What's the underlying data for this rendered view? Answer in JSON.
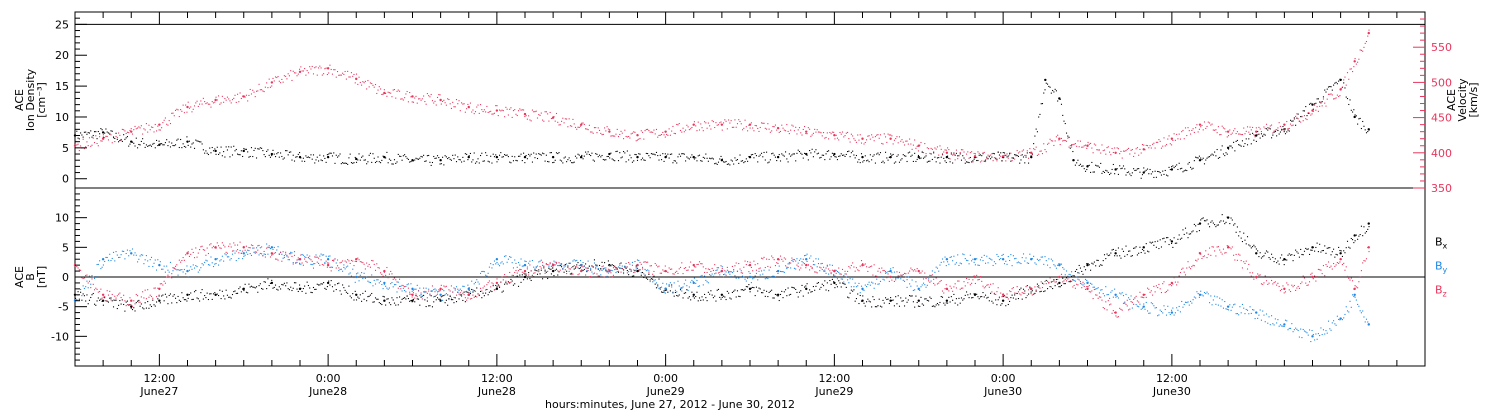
{
  "chart_data": [
    {
      "type": "scatter",
      "panel": "top",
      "ylabel_lines": [
        "ACE",
        "Ion Density",
        "[cm⁻³]"
      ],
      "ylabel_right_lines": [
        "ACE",
        "Velocity",
        "[km/s]"
      ],
      "ylim": [
        -1.5,
        27
      ],
      "yticks": [
        0,
        5,
        10,
        15,
        20,
        25
      ],
      "ylim_right": [
        350,
        600
      ],
      "yticks_right": [
        350,
        400,
        450,
        500,
        550
      ],
      "x_range_hours": [
        6,
        102
      ],
      "grid": false,
      "series": [
        {
          "color": "#000000",
          "axis": "left",
          "x": [
            6,
            8,
            10,
            12,
            14,
            16,
            18,
            20,
            22,
            24,
            26,
            28,
            30,
            32,
            34,
            36,
            38,
            40,
            42,
            44,
            46,
            48,
            50,
            52,
            54,
            56,
            58,
            60,
            62,
            64,
            66,
            68,
            70,
            72,
            74,
            75,
            76,
            77,
            78,
            80,
            82,
            84,
            86,
            88,
            90,
            92,
            94,
            96,
            97,
            98
          ],
          "y": [
            7,
            7.5,
            6,
            5.5,
            6,
            4.5,
            4.5,
            4,
            3.5,
            3.5,
            3.2,
            3.5,
            3,
            3,
            3.5,
            3.5,
            3.5,
            3.5,
            3.5,
            4,
            3.5,
            3.5,
            3.5,
            3,
            3.5,
            3.5,
            4,
            4,
            3.5,
            3.5,
            3.5,
            3.5,
            3.5,
            3.5,
            3.5,
            16,
            13,
            3,
            2,
            1.5,
            1,
            1.5,
            3,
            5,
            7,
            8,
            12,
            16,
            10,
            8
          ]
        },
        {
          "color": "#e8365d",
          "axis": "right",
          "x": [
            6,
            8,
            10,
            12,
            14,
            16,
            18,
            20,
            22,
            24,
            26,
            28,
            30,
            32,
            34,
            36,
            38,
            40,
            42,
            44,
            46,
            48,
            50,
            52,
            54,
            56,
            58,
            60,
            62,
            64,
            66,
            68,
            70,
            72,
            74,
            76,
            78,
            80,
            82,
            84,
            86,
            88,
            90,
            92,
            94,
            96,
            97,
            98
          ],
          "y": [
            410,
            420,
            430,
            440,
            465,
            475,
            480,
            500,
            515,
            520,
            505,
            485,
            480,
            475,
            465,
            460,
            455,
            450,
            440,
            430,
            425,
            430,
            440,
            440,
            440,
            435,
            430,
            425,
            420,
            420,
            410,
            400,
            395,
            395,
            400,
            420,
            410,
            400,
            405,
            420,
            440,
            430,
            430,
            440,
            460,
            490,
            530,
            570
          ]
        }
      ]
    },
    {
      "type": "scatter",
      "panel": "bottom",
      "ylabel_lines": [
        "ACE",
        "B",
        "[nT]"
      ],
      "ylim": [
        -15,
        15
      ],
      "yticks": [
        -10,
        -5,
        0,
        5,
        10
      ],
      "zero_line": 0,
      "x_range_hours": [
        6,
        102
      ],
      "grid": false,
      "series": [
        {
          "name": "Bx",
          "color": "#000000",
          "x": [
            6,
            8,
            10,
            12,
            14,
            16,
            18,
            20,
            22,
            24,
            26,
            28,
            30,
            32,
            34,
            36,
            38,
            40,
            42,
            44,
            46,
            48,
            50,
            52,
            54,
            56,
            58,
            60,
            62,
            64,
            66,
            68,
            70,
            72,
            74,
            76,
            78,
            80,
            82,
            84,
            86,
            88,
            90,
            92,
            94,
            96,
            97,
            98
          ],
          "y": [
            -3,
            -4,
            -5,
            -4,
            -3,
            -3,
            -2,
            -1,
            -2,
            -1,
            -3,
            -4,
            -4,
            -4,
            -3,
            -2,
            0,
            1,
            2,
            2,
            1,
            -2,
            -3,
            -3,
            -2,
            -3,
            -2,
            -1,
            -4,
            -4,
            -4,
            -4,
            -3,
            -4,
            -2,
            -1,
            2,
            4,
            5,
            6,
            9,
            10,
            4,
            3,
            5,
            4,
            7,
            9
          ]
        },
        {
          "name": "By",
          "color": "#1e88e5",
          "x": [
            6,
            8,
            10,
            12,
            14,
            16,
            18,
            20,
            22,
            24,
            26,
            28,
            30,
            32,
            34,
            36,
            38,
            40,
            42,
            44,
            46,
            48,
            50,
            52,
            54,
            56,
            58,
            60,
            62,
            64,
            66,
            68,
            70,
            72,
            74,
            76,
            78,
            80,
            82,
            84,
            86,
            88,
            90,
            92,
            94,
            96,
            97,
            98
          ],
          "y": [
            -4,
            3,
            4,
            2,
            1,
            3,
            4,
            5,
            3,
            3,
            0,
            -1,
            -2,
            -3,
            -2,
            3,
            2,
            2,
            2,
            1,
            2,
            -2,
            -1,
            1,
            0,
            1,
            3,
            1,
            -2,
            1,
            -2,
            3,
            3,
            3,
            3,
            2,
            -1,
            -3,
            -5,
            -6,
            -3,
            -5,
            -6,
            -8,
            -10,
            -7,
            -3,
            -8
          ]
        },
        {
          "name": "Bz",
          "color": "#e8365d",
          "x": [
            6,
            8,
            10,
            12,
            14,
            16,
            18,
            20,
            22,
            24,
            26,
            28,
            30,
            32,
            34,
            36,
            38,
            40,
            42,
            44,
            46,
            48,
            50,
            52,
            54,
            56,
            58,
            60,
            62,
            64,
            66,
            68,
            70,
            72,
            74,
            76,
            78,
            80,
            82,
            84,
            86,
            88,
            90,
            92,
            94,
            96,
            97,
            98
          ],
          "y": [
            2,
            -3,
            -4,
            -2,
            4,
            5,
            5,
            4,
            3,
            2,
            3,
            1,
            -3,
            -2,
            -3,
            -1,
            1,
            2,
            1,
            1,
            2,
            1,
            2,
            1,
            2,
            3,
            2,
            1,
            2,
            0,
            1,
            -2,
            0,
            -3,
            -2,
            0,
            -2,
            -6,
            -3,
            -1,
            4,
            5,
            0,
            -2,
            0,
            3,
            -2,
            5
          ]
        }
      ],
      "legend": [
        {
          "label": "B",
          "sub": "x",
          "color": "#000000"
        },
        {
          "label": "B",
          "sub": "y",
          "color": "#1e88e5"
        },
        {
          "label": "B",
          "sub": "z",
          "color": "#e8365d"
        }
      ],
      "legend_placement": "right"
    }
  ],
  "x_axis": {
    "ticks": [
      {
        "hours": 12,
        "time": "12:00",
        "date": "June27"
      },
      {
        "hours": 24,
        "time": "0:00",
        "date": "June28"
      },
      {
        "hours": 36,
        "time": "12:00",
        "date": "June28"
      },
      {
        "hours": 48,
        "time": "0:00",
        "date": "June29"
      },
      {
        "hours": 60,
        "time": "12:00",
        "date": "June29"
      },
      {
        "hours": 72,
        "time": "0:00",
        "date": "June30"
      },
      {
        "hours": 84,
        "time": "12:00",
        "date": "June30"
      }
    ],
    "xlabel": "hours:minutes, June 27, 2012 - June 30, 2012"
  }
}
